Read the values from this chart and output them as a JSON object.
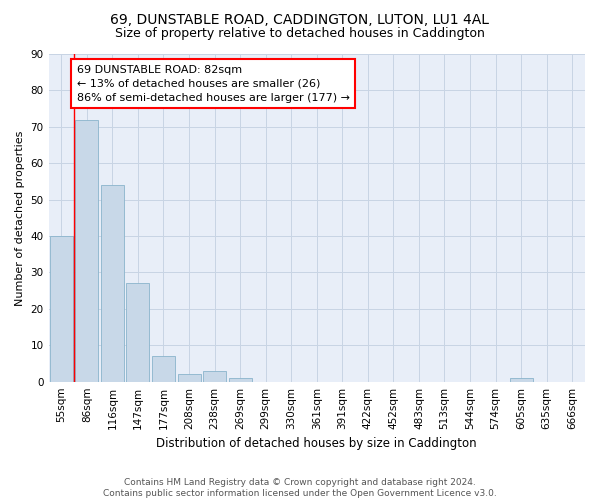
{
  "title": "69, DUNSTABLE ROAD, CADDINGTON, LUTON, LU1 4AL",
  "subtitle": "Size of property relative to detached houses in Caddington",
  "xlabel": "Distribution of detached houses by size in Caddington",
  "ylabel": "Number of detached properties",
  "bar_values": [
    40,
    72,
    54,
    27,
    7,
    2,
    3,
    1,
    0,
    0,
    0,
    0,
    0,
    0,
    0,
    0,
    0,
    0,
    1,
    0,
    0
  ],
  "x_labels": [
    "55sqm",
    "86sqm",
    "116sqm",
    "147sqm",
    "177sqm",
    "208sqm",
    "238sqm",
    "269sqm",
    "299sqm",
    "330sqm",
    "361sqm",
    "391sqm",
    "422sqm",
    "452sqm",
    "483sqm",
    "513sqm",
    "544sqm",
    "574sqm",
    "605sqm",
    "635sqm",
    "666sqm"
  ],
  "bar_color": "#c8d8e8",
  "bar_edge_color": "#8ab4cc",
  "annotation_box_text": "69 DUNSTABLE ROAD: 82sqm\n← 13% of detached houses are smaller (26)\n86% of semi-detached houses are larger (177) →",
  "annotation_box_color": "white",
  "annotation_box_edge_color": "red",
  "vline_color": "red",
  "ylim": [
    0,
    90
  ],
  "yticks": [
    0,
    10,
    20,
    30,
    40,
    50,
    60,
    70,
    80,
    90
  ],
  "grid_color": "#c8d4e4",
  "bg_color": "#e8eef8",
  "footer": "Contains HM Land Registry data © Crown copyright and database right 2024.\nContains public sector information licensed under the Open Government Licence v3.0.",
  "title_fontsize": 10,
  "subtitle_fontsize": 9,
  "xlabel_fontsize": 8.5,
  "ylabel_fontsize": 8,
  "annotation_fontsize": 8,
  "footer_fontsize": 6.5,
  "tick_fontsize": 7.5
}
